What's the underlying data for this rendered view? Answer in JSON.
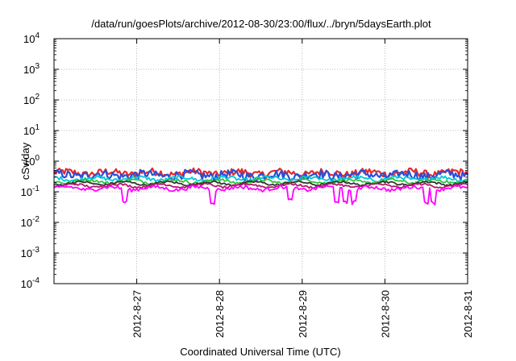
{
  "chart_data": {
    "type": "line",
    "title": "/data/run/goesPlots/archive/2012-08-30/23:00/flux/../bryn/5daysEarth.plot",
    "xlabel": "Coordinated Universal Time (UTC)",
    "ylabel": "cSv/day",
    "y_scale": "log",
    "ylim": [
      0.0001,
      10000
    ],
    "y_ticks": [
      {
        "value": 10000,
        "base": "10",
        "exp": "4"
      },
      {
        "value": 1000,
        "base": "10",
        "exp": "3"
      },
      {
        "value": 100,
        "base": "10",
        "exp": "2"
      },
      {
        "value": 10,
        "base": "10",
        "exp": "1"
      },
      {
        "value": 1,
        "base": "10",
        "exp": "0"
      },
      {
        "value": 0.1,
        "base": "10",
        "exp": "-1"
      },
      {
        "value": 0.01,
        "base": "10",
        "exp": "-2"
      },
      {
        "value": 0.001,
        "base": "10",
        "exp": "-3"
      },
      {
        "value": 0.0001,
        "base": "10",
        "exp": "-4"
      }
    ],
    "xlim": [
      "2012-08-26",
      "2012-08-31"
    ],
    "x_ticks": [
      "2012-8-27",
      "2012-8-28",
      "2012-8-29",
      "2012-8-30",
      "2012-8-31"
    ],
    "grid": true,
    "series_style": "noisy daily dose traces sampled hourly",
    "series": [
      {
        "color": "#e8282a",
        "baseline": 0.42,
        "jitter": 0.1
      },
      {
        "color": "#2b4fd6",
        "baseline": 0.36,
        "jitter": 0.12
      },
      {
        "color": "#00c8d8",
        "baseline": 0.27,
        "jitter": 0.05
      },
      {
        "color": "#30c040",
        "baseline": 0.22,
        "jitter": 0.04
      },
      {
        "color": "#333333",
        "baseline": 0.19,
        "jitter": 0.03
      },
      {
        "color": "#b01a6a",
        "baseline": 0.16,
        "jitter": 0.03
      },
      {
        "color": "#ff00ff",
        "baseline": 0.13,
        "jitter": 0.05
      }
    ]
  }
}
